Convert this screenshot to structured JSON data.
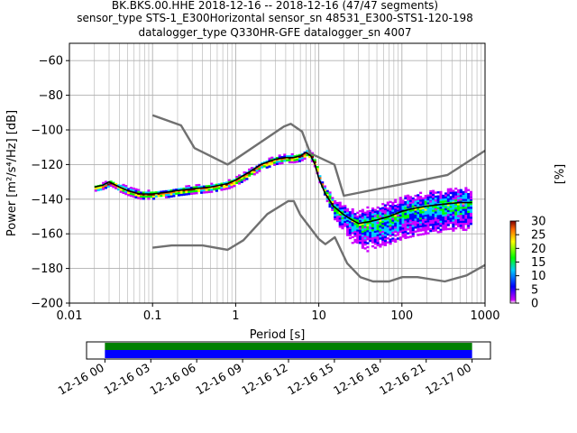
{
  "title_lines": [
    "BK.BKS.00.HHE   2018-12-16 -- 2018-12-16  (47/47 segments)",
    "sensor_type STS-1_E300Horizontal sensor_sn 48531_E300-STS1-120-198",
    "datalogger_type Q330HR-GFE datalogger_sn 4007"
  ],
  "chart_data": [
    {
      "type": "heatmap",
      "xlabel": "Period [s]",
      "ylabel": "Power [m²/s⁴/Hz] [dB]",
      "x_scale": "log",
      "xlim": [
        0.01,
        1000
      ],
      "ylim": [
        -200,
        -50
      ],
      "xticks": [
        0.01,
        0.1,
        1,
        10,
        100,
        1000
      ],
      "xtick_labels": [
        "0.01",
        "0.1",
        "1",
        "10",
        "100",
        "1000"
      ],
      "yticks": [
        -200,
        -180,
        -160,
        -140,
        -120,
        -100,
        -80,
        -60
      ],
      "ytick_labels": [
        "−200",
        "−180",
        "−160",
        "−140",
        "−120",
        "−100",
        "−80",
        "−60"
      ],
      "grid": true,
      "colorbar": {
        "label": "[%]",
        "range": [
          0,
          30
        ],
        "ticks": [
          0,
          5,
          10,
          15,
          20,
          25,
          30
        ],
        "tick_labels": [
          "0",
          "5",
          "10",
          "15",
          "20",
          "25",
          "30"
        ],
        "colormap": [
          "#ffffff",
          "#cc00ff",
          "#0000ff",
          "#00ccff",
          "#00ff00",
          "#ffff00",
          "#ff6600",
          "#800000"
        ]
      },
      "series": [
        {
          "name": "",
          "role": "mode",
          "color": "#000000",
          "x": [
            0.02,
            0.025,
            0.03,
            0.04,
            0.05,
            0.07,
            0.1,
            0.15,
            0.2,
            0.3,
            0.5,
            0.8,
            1,
            1.5,
            2,
            3,
            4,
            5,
            6,
            7,
            8,
            9,
            10,
            12,
            15,
            20,
            25,
            30,
            40,
            50,
            70,
            100,
            150,
            200,
            300,
            500,
            700
          ],
          "y": [
            -133,
            -132,
            -130,
            -133,
            -135,
            -137,
            -137,
            -136,
            -135,
            -134,
            -133,
            -131,
            -129,
            -124,
            -120,
            -117,
            -116,
            -116,
            -115,
            -113,
            -115,
            -120,
            -128,
            -137,
            -144,
            -149,
            -152,
            -154,
            -153,
            -152,
            -150,
            -147,
            -145,
            -144,
            -143,
            -142,
            -142
          ]
        },
        {
          "name": "",
          "role": "noise_model_high",
          "color": "#707070",
          "x": [
            0.1,
            0.22,
            0.32,
            0.8,
            3.8,
            4.6,
            6.3,
            7.9,
            15.4,
            20,
            354.8,
            1000
          ],
          "y": [
            -91.5,
            -97.4,
            -110.5,
            -120,
            -98,
            -96.5,
            -101,
            -113.5,
            -120,
            -138,
            -126,
            -112
          ]
        },
        {
          "name": "",
          "role": "noise_model_low",
          "color": "#707070",
          "x": [
            0.1,
            0.17,
            0.4,
            0.8,
            1.24,
            2.4,
            4.3,
            5,
            6,
            10,
            12,
            15.6,
            21.9,
            31.6,
            45,
            70,
            101,
            154,
            328,
            600,
            1000
          ],
          "y": [
            -168,
            -166.7,
            -166.7,
            -169.2,
            -163.7,
            -148.6,
            -141.1,
            -141.1,
            -149,
            -163,
            -166,
            -162,
            -177,
            -185,
            -187.5,
            -187.5,
            -185,
            -185,
            -187.5,
            -184,
            -178
          ]
        }
      ]
    },
    {
      "type": "bar",
      "role": "data_coverage",
      "x": [
        "12-16 00",
        "12-16 03",
        "12-16 06",
        "12-16 09",
        "12-16 12",
        "12-16 15",
        "12-16 18",
        "12-16 21",
        "12-17 00"
      ],
      "segments": [
        {
          "start_hour": 0,
          "end_hour": 24,
          "color": "#008000"
        },
        {
          "start_hour": 0,
          "end_hour": 24,
          "color": "#0000ff"
        }
      ],
      "axis_range_hours": [
        -1.2,
        25.2
      ]
    }
  ]
}
